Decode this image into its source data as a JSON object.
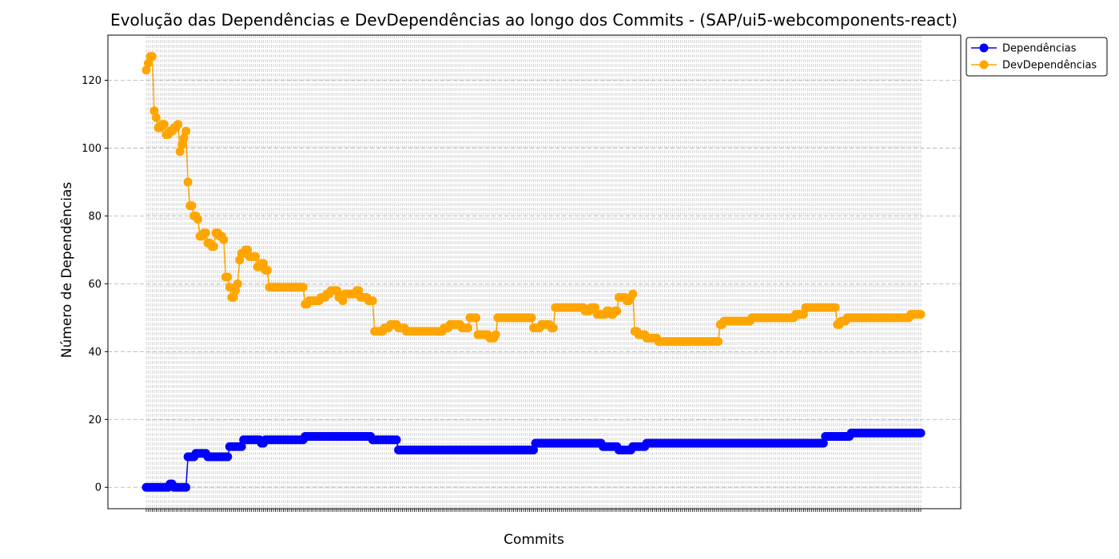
{
  "chart_data": {
    "type": "line",
    "title": "Evolução das Dependências e DevDependências ao longo dos Commits - (SAP/ui5-webcomponents-react)",
    "xlabel": "Commits",
    "ylabel": "Número de Dependências",
    "ylim": [
      -6.3,
      133.3
    ],
    "yticks": [
      0,
      20,
      40,
      60,
      80,
      100,
      120
    ],
    "grid": true,
    "legend_position": "top-right-outside",
    "x_points": 391,
    "series": [
      {
        "name": "Dependências",
        "color": "#0000ff",
        "steps": [
          [
            0,
            0
          ],
          [
            12,
            1
          ],
          [
            14,
            0
          ],
          [
            21,
            9
          ],
          [
            25,
            10
          ],
          [
            31,
            9
          ],
          [
            42,
            12
          ],
          [
            49,
            14
          ],
          [
            58,
            13
          ],
          [
            60,
            14
          ],
          [
            80,
            15
          ],
          [
            114,
            14
          ],
          [
            127,
            11
          ],
          [
            196,
            13
          ],
          [
            230,
            12
          ],
          [
            238,
            11
          ],
          [
            245,
            12
          ],
          [
            252,
            13
          ],
          [
            342,
            15
          ],
          [
            355,
            16
          ],
          [
            391,
            16
          ]
        ]
      },
      {
        "name": "DevDependências",
        "color": "#ffa500",
        "steps": [
          [
            0,
            123
          ],
          [
            1,
            125
          ],
          [
            2,
            127
          ],
          [
            4,
            111
          ],
          [
            5,
            109
          ],
          [
            6,
            106
          ],
          [
            8,
            107
          ],
          [
            10,
            104
          ],
          [
            12,
            105
          ],
          [
            14,
            106
          ],
          [
            16,
            107
          ],
          [
            17,
            99
          ],
          [
            18,
            101
          ],
          [
            19,
            103
          ],
          [
            20,
            105
          ],
          [
            21,
            90
          ],
          [
            22,
            83
          ],
          [
            24,
            80
          ],
          [
            26,
            79
          ],
          [
            27,
            74
          ],
          [
            29,
            75
          ],
          [
            31,
            72
          ],
          [
            33,
            71
          ],
          [
            35,
            75
          ],
          [
            37,
            74
          ],
          [
            39,
            73
          ],
          [
            40,
            62
          ],
          [
            42,
            59
          ],
          [
            43,
            56
          ],
          [
            45,
            58
          ],
          [
            46,
            60
          ],
          [
            47,
            67
          ],
          [
            48,
            69
          ],
          [
            50,
            70
          ],
          [
            52,
            68
          ],
          [
            56,
            65
          ],
          [
            58,
            66
          ],
          [
            60,
            64
          ],
          [
            62,
            59
          ],
          [
            80,
            54
          ],
          [
            82,
            55
          ],
          [
            88,
            56
          ],
          [
            91,
            57
          ],
          [
            93,
            58
          ],
          [
            97,
            56
          ],
          [
            99,
            55
          ],
          [
            100,
            57
          ],
          [
            106,
            58
          ],
          [
            108,
            56
          ],
          [
            110,
            56
          ],
          [
            112,
            55
          ],
          [
            115,
            46
          ],
          [
            120,
            47
          ],
          [
            123,
            48
          ],
          [
            127,
            47
          ],
          [
            131,
            46
          ],
          [
            150,
            47
          ],
          [
            153,
            48
          ],
          [
            159,
            47
          ],
          [
            163,
            50
          ],
          [
            167,
            45
          ],
          [
            173,
            44
          ],
          [
            176,
            45
          ],
          [
            177,
            50
          ],
          [
            195,
            47
          ],
          [
            199,
            48
          ],
          [
            204,
            47
          ],
          [
            206,
            53
          ],
          [
            221,
            52
          ],
          [
            224,
            53
          ],
          [
            227,
            51
          ],
          [
            232,
            52
          ],
          [
            234,
            51
          ],
          [
            236,
            52
          ],
          [
            238,
            56
          ],
          [
            242,
            55
          ],
          [
            244,
            56
          ],
          [
            245,
            57
          ],
          [
            246,
            46
          ],
          [
            248,
            45
          ],
          [
            252,
            44
          ],
          [
            258,
            43
          ],
          [
            289,
            48
          ],
          [
            291,
            49
          ],
          [
            305,
            50
          ],
          [
            327,
            51
          ],
          [
            332,
            53
          ],
          [
            348,
            48
          ],
          [
            350,
            49
          ],
          [
            353,
            50
          ],
          [
            385,
            51
          ],
          [
            391,
            51
          ]
        ]
      }
    ]
  }
}
